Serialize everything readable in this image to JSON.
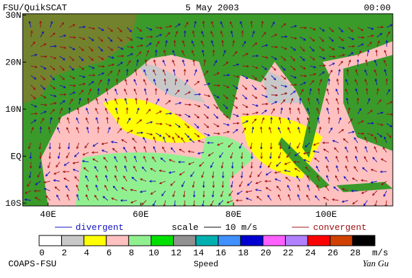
{
  "header": {
    "title": "FSU/QuikSCAT",
    "date": "5 May 2003",
    "time": "00:00"
  },
  "map": {
    "lat_labels": [
      "30N",
      "20N",
      "10N",
      "EQ",
      "10S"
    ],
    "lon_labels": [
      "40E",
      "60E",
      "80E",
      "100E"
    ]
  },
  "legend": {
    "divergent": "divergent",
    "scale": "scale",
    "scale_value": "10 m/s",
    "convergent": "convergent"
  },
  "colorbar": {
    "ticks": [
      0,
      2,
      4,
      6,
      8,
      10,
      12,
      14,
      16,
      18,
      20,
      22,
      24,
      26,
      28
    ],
    "unit": "m/s",
    "label": "Speed",
    "colors": [
      "#ffffff",
      "#c8c8c8",
      "#ffff00",
      "#ffc0c0",
      "#90f090",
      "#00e000",
      "#909090",
      "#00b0b0",
      "#4090ff",
      "#0000d0",
      "#ff60ff",
      "#b080ff",
      "#ff0000",
      "#d04000",
      "#000000"
    ]
  },
  "footer": {
    "left": "COAPS-FSU",
    "right": "Yan Gu"
  }
}
